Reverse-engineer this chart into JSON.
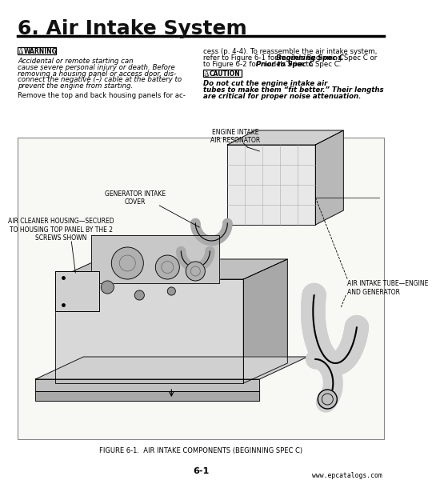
{
  "title": "6. Air Intake System",
  "bg_color": "#f5f5f0",
  "page_bg": "#ffffff",
  "title_color": "#111111",
  "warning_label": "WARNING",
  "warning_text_lines": [
    "Accidental or remote starting can",
    "cause severe personal injury or death. Before",
    "removing a housing panel or access door, dis-",
    "connect the negative (–) cable at the battery to",
    "prevent the engine from starting."
  ],
  "caution_label": "CAUTION",
  "caution_text_lines": [
    "Do not cut the engine intake air",
    "tubes to make them “fit better.” Their lengths",
    "are critical for proper noise attenuation."
  ],
  "right_col_lines": [
    "cess (p. 4-4). To reassemble the air intake system,",
    "refer to Figure 6-1 for models Beginning Spec C or",
    "to Figure 6-2 for models Prior to Spec C."
  ],
  "right_bold_1": "Beginning Spec C",
  "right_bold_2": "Prior to Spec C",
  "left_bottom_line": "Remove the top and back housing panels for ac-",
  "label_engine_intake": "ENGINE INTAKE\nAIR RESONATOR",
  "label_generator_intake": "GENERATOR INTAKE\nCOVER",
  "label_air_cleaner": "AIR CLEANER HOUSING—SECURED\nTO HOUSING TOP PANEL BY THE 2\nSCREWS SHOWN",
  "label_air_intake_tube": "AIR INTAKE TUBE—ENGINE\nAND GENERATOR",
  "figure_caption": "FIGURE 6-1.  AIR INTAKE COMPONENTS (BEGINNING SPEC C)",
  "page_number": "6-1",
  "watermark": "www.epcatalogs.com"
}
